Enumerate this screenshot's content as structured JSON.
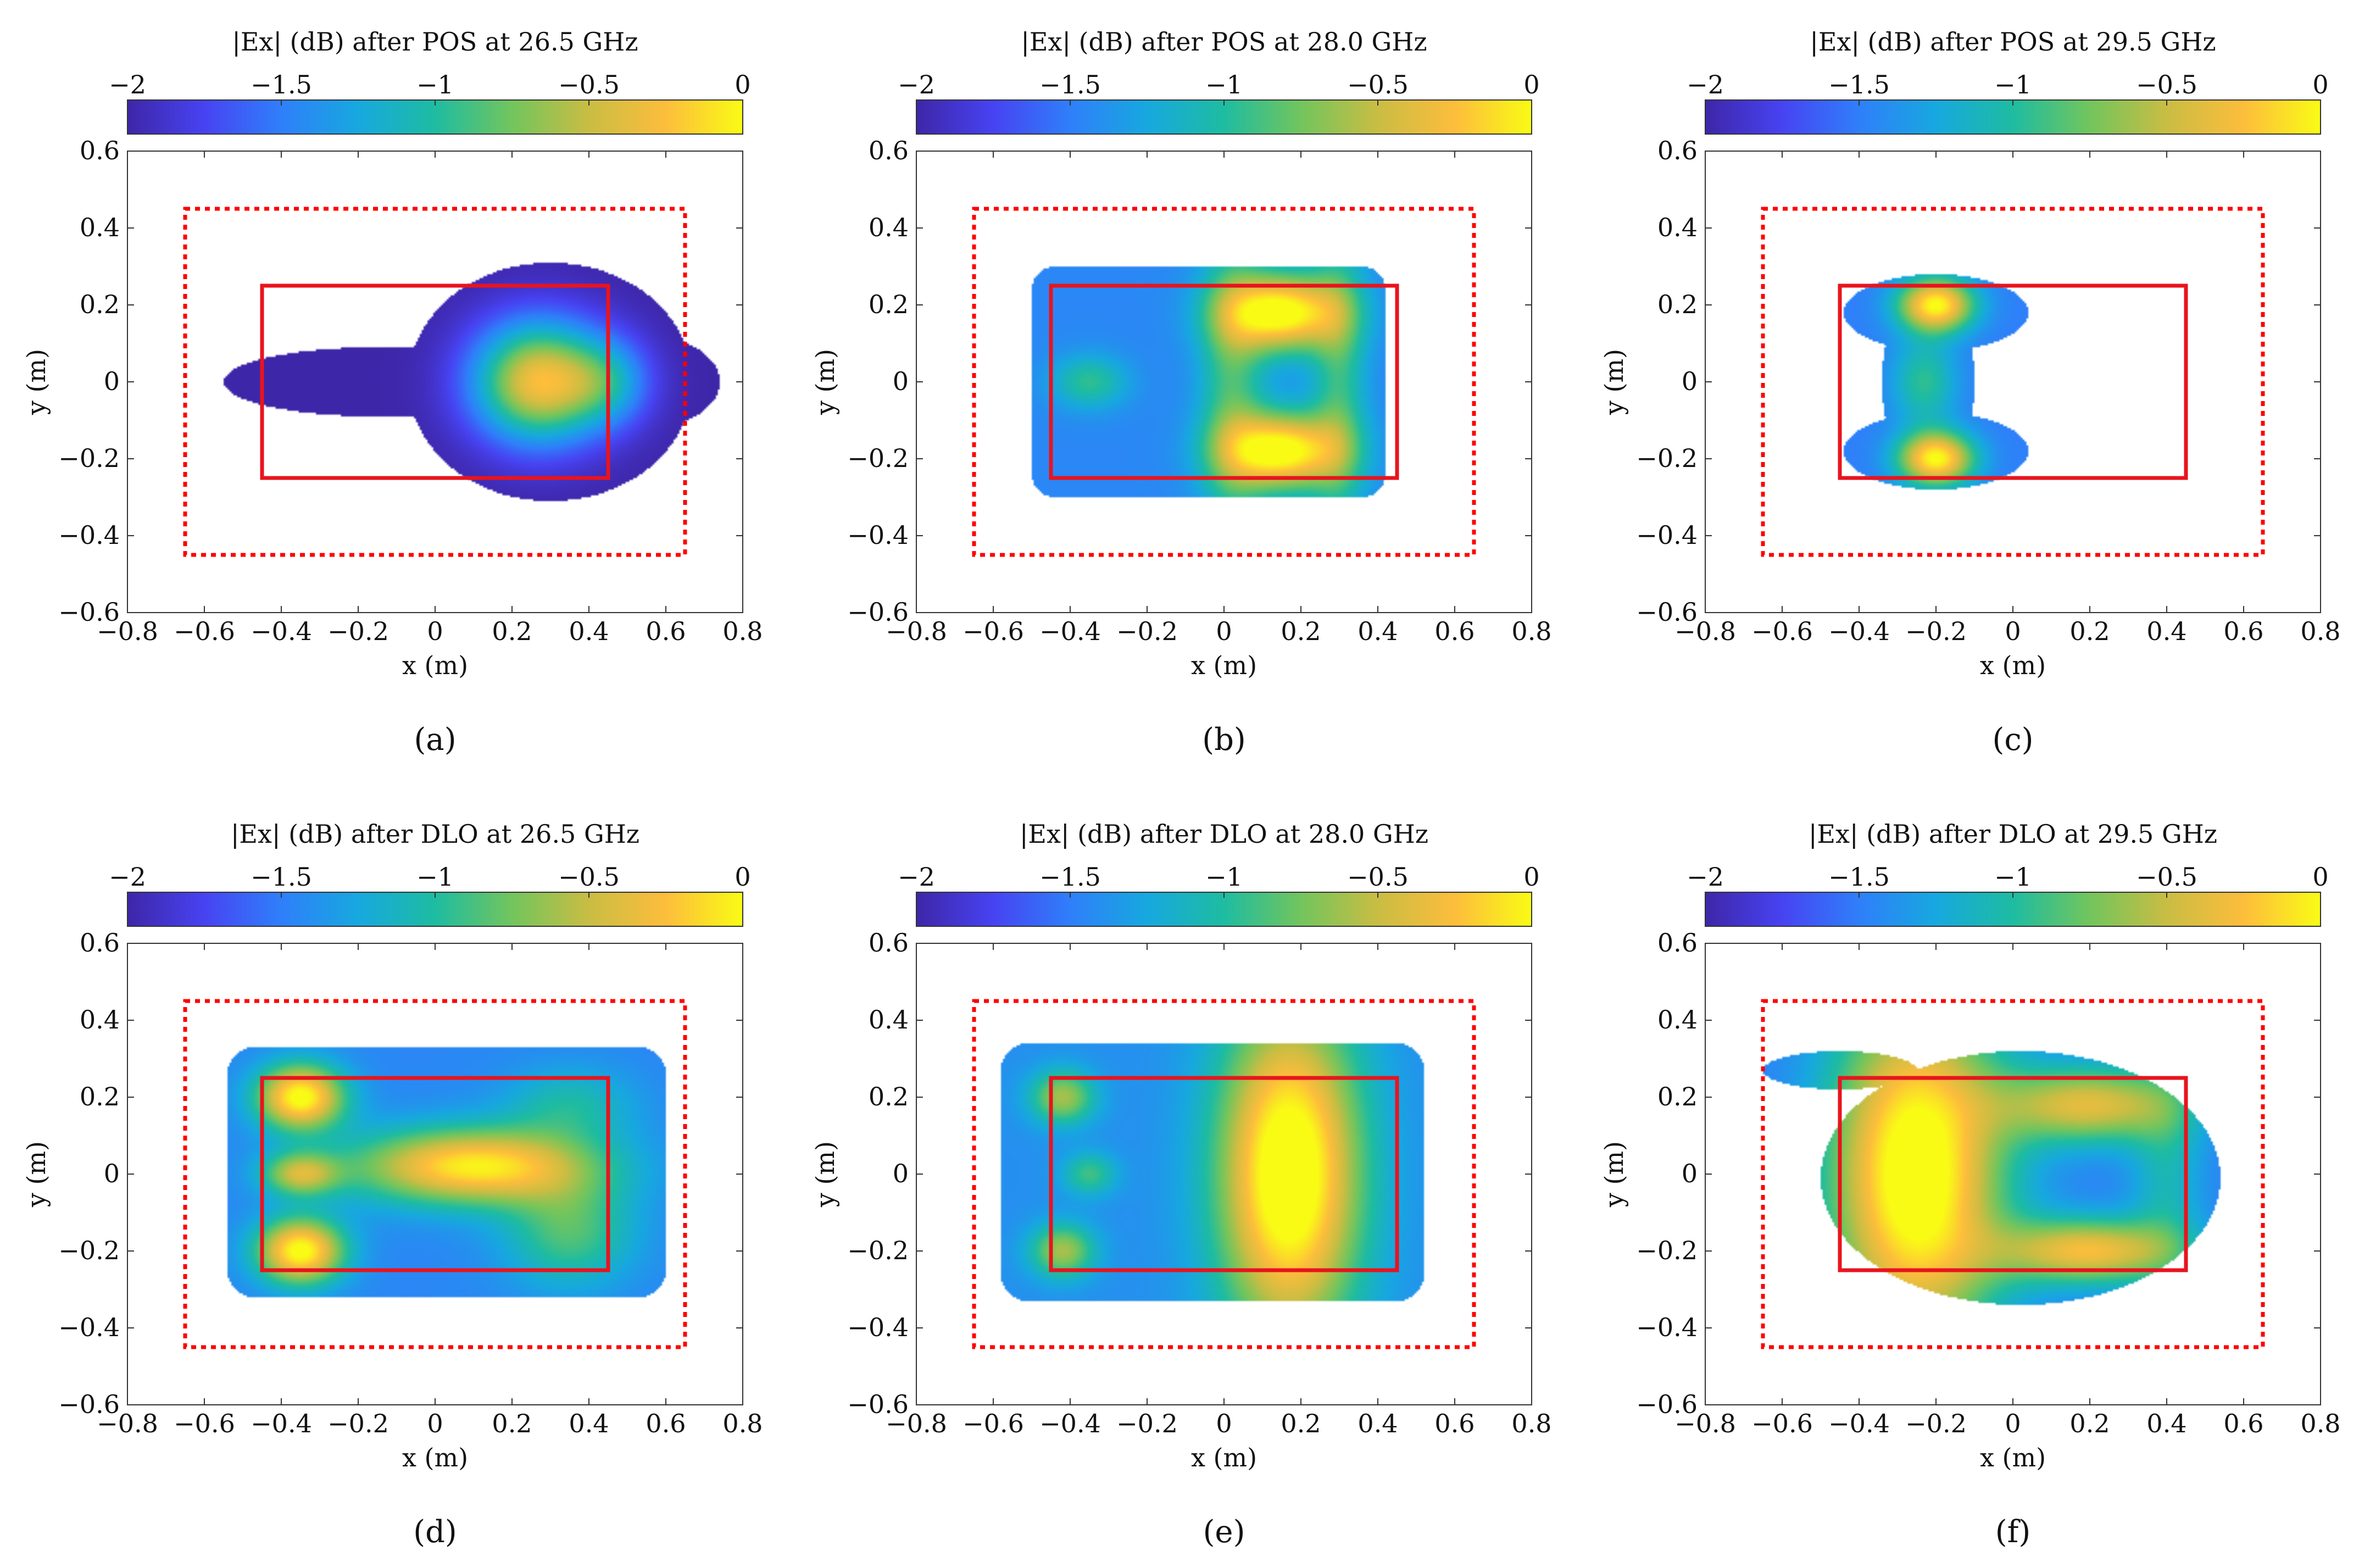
{
  "figure": {
    "colorbar": {
      "ticks": [
        "−2",
        "−1.5",
        "−1",
        "−0.5",
        "0"
      ],
      "range": [
        -2,
        0
      ]
    },
    "x_ticks": [
      "−0.8",
      "−0.6",
      "−0.4",
      "−0.2",
      "0",
      "0.2",
      "0.4",
      "0.6",
      "0.8"
    ],
    "y_ticks": [
      "0.6",
      "0.4",
      "0.2",
      "0",
      "−0.2",
      "−0.4",
      "−0.6"
    ],
    "xlabel": "x (m)",
    "ylabel": "y (m)",
    "colors": {
      "outer_region": "#ff0000",
      "inner_region": "#e8141e",
      "frame": "#333333"
    }
  },
  "chart_data": [
    {
      "type": "heatmap",
      "panel": "(a)",
      "title": "|Ex| (dB) after POS at 26.5 GHz",
      "xlabel": "x (m)",
      "ylabel": "y (m)",
      "xlim": [
        -0.8,
        0.8
      ],
      "ylim": [
        -0.6,
        0.6
      ],
      "clim": [
        -2,
        0
      ],
      "outer_region": {
        "x": [
          -0.65,
          0.65
        ],
        "y": [
          -0.45,
          0.45
        ],
        "style": "dotted"
      },
      "inner_region": {
        "x": [
          -0.45,
          0.45
        ],
        "y": [
          -0.25,
          0.25
        ],
        "style": "solid"
      },
      "support": {
        "type": "lobes",
        "lobes": [
          {
            "cx": 0.3,
            "cy": 0,
            "rx": 0.37,
            "ry": 0.31
          },
          {
            "cx": -0.15,
            "cy": 0,
            "rx": 0.4,
            "ry": 0.09
          },
          {
            "cx": 0.55,
            "cy": 0,
            "rx": 0.19,
            "ry": 0.12
          }
        ]
      },
      "hotspots": [
        {
          "x": 0.27,
          "y": 0,
          "sx": 0.12,
          "sy": 0.11,
          "a": 1.7
        },
        {
          "x": 0.45,
          "y": 0,
          "sx": 0.08,
          "sy": 0.08,
          "a": 0.6
        }
      ],
      "base_db": -2
    },
    {
      "type": "heatmap",
      "panel": "(b)",
      "title": "|Ex| (dB) after POS at 28.0 GHz",
      "xlabel": "x (m)",
      "ylabel": "y (m)",
      "xlim": [
        -0.8,
        0.8
      ],
      "ylim": [
        -0.6,
        0.6
      ],
      "clim": [
        -2,
        0
      ],
      "outer_region": {
        "x": [
          -0.65,
          0.65
        ],
        "y": [
          -0.45,
          0.45
        ],
        "style": "dotted"
      },
      "inner_region": {
        "x": [
          -0.45,
          0.45
        ],
        "y": [
          -0.25,
          0.25
        ],
        "style": "solid"
      },
      "support": {
        "type": "rect",
        "x": [
          -0.5,
          0.42
        ],
        "y": [
          -0.3,
          0.3
        ],
        "r": 0.06
      },
      "hotspots": [
        {
          "x": 0.15,
          "y": 0.18,
          "sx": 0.11,
          "sy": 0.07,
          "a": 1.55
        },
        {
          "x": 0.15,
          "y": -0.18,
          "sx": 0.11,
          "sy": 0.07,
          "a": 1.55
        },
        {
          "x": 0.02,
          "y": 0,
          "sx": 0.06,
          "sy": 0.3,
          "a": 0.55
        },
        {
          "x": 0.3,
          "y": 0,
          "sx": 0.05,
          "sy": 0.3,
          "a": 0.5
        },
        {
          "x": -0.35,
          "y": 0,
          "sx": 0.07,
          "sy": 0.05,
          "a": 0.5
        }
      ],
      "base_db": -1.45
    },
    {
      "type": "heatmap",
      "panel": "(c)",
      "title": "|Ex| (dB) after POS at 29.5 GHz",
      "xlabel": "x (m)",
      "ylabel": "y (m)",
      "xlim": [
        -0.8,
        0.8
      ],
      "ylim": [
        -0.6,
        0.6
      ],
      "clim": [
        -2,
        0
      ],
      "outer_region": {
        "x": [
          -0.65,
          0.65
        ],
        "y": [
          -0.45,
          0.45
        ],
        "style": "dotted"
      },
      "inner_region": {
        "x": [
          -0.45,
          0.45
        ],
        "y": [
          -0.25,
          0.25
        ],
        "style": "solid"
      },
      "support": {
        "type": "lobes",
        "lobes": [
          {
            "cx": -0.2,
            "cy": 0.18,
            "rx": 0.24,
            "ry": 0.1
          },
          {
            "cx": -0.2,
            "cy": -0.18,
            "rx": 0.24,
            "ry": 0.1
          },
          {
            "cx": -0.22,
            "cy": 0,
            "rx": 0.12,
            "ry": 0.26
          }
        ]
      },
      "hotspots": [
        {
          "x": -0.2,
          "y": 0.2,
          "sx": 0.07,
          "sy": 0.05,
          "a": 1.5
        },
        {
          "x": -0.2,
          "y": -0.2,
          "sx": 0.07,
          "sy": 0.05,
          "a": 1.5
        },
        {
          "x": -0.23,
          "y": 0,
          "sx": 0.06,
          "sy": 0.08,
          "a": 0.55
        }
      ],
      "base_db": -1.5
    },
    {
      "type": "heatmap",
      "panel": "(d)",
      "title": "|Ex| (dB) after DLO at 26.5 GHz",
      "xlabel": "x (m)",
      "ylabel": "y (m)",
      "xlim": [
        -0.8,
        0.8
      ],
      "ylim": [
        -0.6,
        0.6
      ],
      "clim": [
        -2,
        0
      ],
      "outer_region": {
        "x": [
          -0.65,
          0.65
        ],
        "y": [
          -0.45,
          0.45
        ],
        "style": "dotted"
      },
      "inner_region": {
        "x": [
          -0.45,
          0.45
        ],
        "y": [
          -0.25,
          0.25
        ],
        "style": "solid"
      },
      "support": {
        "type": "rect",
        "x": [
          -0.54,
          0.6
        ],
        "y": [
          -0.32,
          0.33
        ],
        "r": 0.07
      },
      "hotspots": [
        {
          "x": -0.35,
          "y": 0.2,
          "sx": 0.08,
          "sy": 0.06,
          "a": 1.5
        },
        {
          "x": -0.35,
          "y": -0.2,
          "sx": 0.08,
          "sy": 0.06,
          "a": 1.5
        },
        {
          "x": 0.1,
          "y": 0.02,
          "sx": 0.22,
          "sy": 0.07,
          "a": 1.4
        },
        {
          "x": -0.35,
          "y": 0,
          "sx": 0.07,
          "sy": 0.04,
          "a": 0.9
        },
        {
          "x": 0.35,
          "y": -0.15,
          "sx": 0.12,
          "sy": 0.1,
          "a": 0.6
        },
        {
          "x": 0.35,
          "y": 0.18,
          "sx": 0.12,
          "sy": 0.07,
          "a": 0.4
        }
      ],
      "base_db": -1.45
    },
    {
      "type": "heatmap",
      "panel": "(e)",
      "title": "|Ex| (dB) after DLO at 28.0 GHz",
      "xlabel": "x (m)",
      "ylabel": "y (m)",
      "xlim": [
        -0.8,
        0.8
      ],
      "ylim": [
        -0.6,
        0.6
      ],
      "clim": [
        -2,
        0
      ],
      "outer_region": {
        "x": [
          -0.65,
          0.65
        ],
        "y": [
          -0.45,
          0.45
        ],
        "style": "dotted"
      },
      "inner_region": {
        "x": [
          -0.45,
          0.45
        ],
        "y": [
          -0.25,
          0.25
        ],
        "style": "solid"
      },
      "support": {
        "type": "rect",
        "x": [
          -0.58,
          0.52
        ],
        "y": [
          -0.33,
          0.34
        ],
        "r": 0.07
      },
      "hotspots": [
        {
          "x": 0.17,
          "y": 0,
          "sx": 0.13,
          "sy": 0.3,
          "a": 1.65
        },
        {
          "x": -0.42,
          "y": 0.2,
          "sx": 0.06,
          "sy": 0.05,
          "a": 0.8
        },
        {
          "x": -0.42,
          "y": -0.2,
          "sx": 0.06,
          "sy": 0.05,
          "a": 0.8
        },
        {
          "x": -0.35,
          "y": 0,
          "sx": 0.05,
          "sy": 0.04,
          "a": 0.5
        }
      ],
      "base_db": -1.4
    },
    {
      "type": "heatmap",
      "panel": "(f)",
      "title": "|Ex| (dB) after DLO at 29.5 GHz",
      "xlabel": "x (m)",
      "ylabel": "y (m)",
      "xlim": [
        -0.8,
        0.8
      ],
      "ylim": [
        -0.6,
        0.6
      ],
      "clim": [
        -2,
        0
      ],
      "outer_region": {
        "x": [
          -0.65,
          0.65
        ],
        "y": [
          -0.45,
          0.45
        ],
        "style": "dotted"
      },
      "inner_region": {
        "x": [
          -0.45,
          0.45
        ],
        "y": [
          -0.25,
          0.25
        ],
        "style": "solid"
      },
      "support": {
        "type": "lobes",
        "lobes": [
          {
            "cx": 0.02,
            "cy": -0.01,
            "rx": 0.52,
            "ry": 0.33
          },
          {
            "cx": -0.45,
            "cy": 0.27,
            "rx": 0.2,
            "ry": 0.05
          }
        ]
      },
      "hotspots": [
        {
          "x": -0.25,
          "y": 0,
          "sx": 0.16,
          "sy": 0.32,
          "a": 1.7
        },
        {
          "x": 0.2,
          "y": 0.18,
          "sx": 0.16,
          "sy": 0.07,
          "a": 1.1
        },
        {
          "x": 0.2,
          "y": -0.2,
          "sx": 0.16,
          "sy": 0.06,
          "a": 1.2
        },
        {
          "x": 0.4,
          "y": 0,
          "sx": 0.07,
          "sy": 0.2,
          "a": 0.4
        }
      ],
      "base_db": -1.5
    }
  ]
}
